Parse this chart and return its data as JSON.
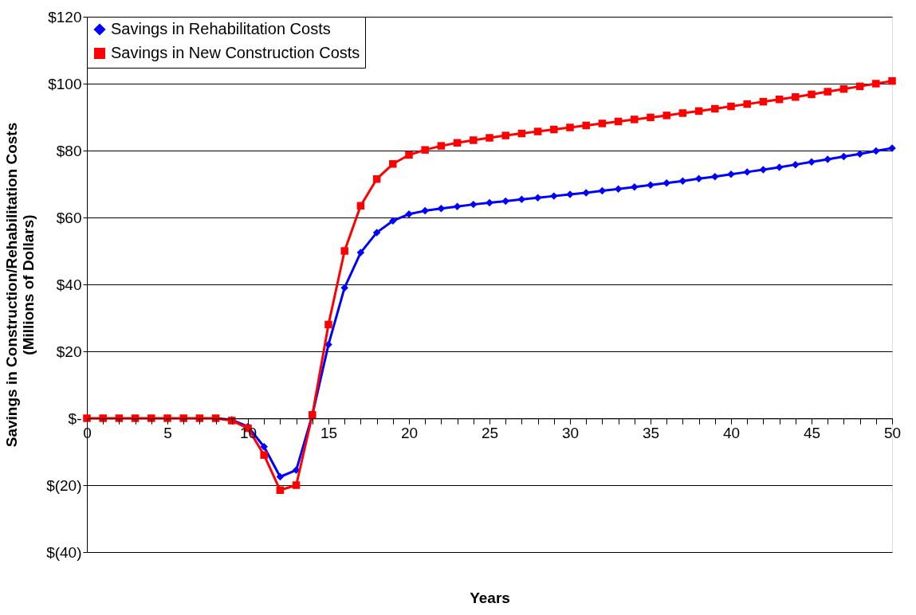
{
  "chart_data": {
    "type": "line",
    "xlabel": "Years",
    "ylabel": "Savings in Construction/Rehabilitation Costs\n(Millions of Dollars)",
    "x": [
      0,
      1,
      2,
      3,
      4,
      5,
      6,
      7,
      8,
      9,
      10,
      11,
      12,
      13,
      14,
      15,
      16,
      17,
      18,
      19,
      20,
      21,
      22,
      23,
      24,
      25,
      26,
      27,
      28,
      29,
      30,
      31,
      32,
      33,
      34,
      35,
      36,
      37,
      38,
      39,
      40,
      41,
      42,
      43,
      44,
      45,
      46,
      47,
      48,
      49,
      50
    ],
    "series": [
      {
        "name": "Savings in Rehabilitation Costs",
        "color": "#0000ff",
        "marker": "diamond",
        "values": [
          null,
          null,
          null,
          null,
          null,
          null,
          null,
          null,
          0,
          -0.5,
          -2.5,
          -8.5,
          -17.5,
          -15.5,
          1,
          22,
          39,
          49.5,
          55.5,
          59,
          61,
          62,
          62.7,
          63.3,
          63.9,
          64.4,
          64.9,
          65.4,
          65.9,
          66.4,
          66.9,
          67.4,
          68.0,
          68.5,
          69.1,
          69.7,
          70.3,
          70.9,
          71.6,
          72.2,
          72.9,
          73.6,
          74.3,
          75.0,
          75.8,
          76.6,
          77.4,
          78.2,
          79.0,
          79.9,
          80.7
        ]
      },
      {
        "name": "Savings in New Construction Costs",
        "color": "#ff0000",
        "marker": "square",
        "values": [
          0,
          0,
          0,
          0,
          0,
          0,
          0,
          0,
          0,
          -0.7,
          -3,
          -11,
          -21.5,
          -20,
          1,
          28,
          50,
          63.5,
          71.5,
          76,
          78.7,
          80.2,
          81.4,
          82.3,
          83.1,
          83.8,
          84.5,
          85.1,
          85.7,
          86.3,
          86.9,
          87.5,
          88.1,
          88.7,
          89.3,
          89.9,
          90.5,
          91.2,
          91.8,
          92.5,
          93.2,
          93.9,
          94.6,
          95.3,
          96.0,
          96.8,
          97.6,
          98.4,
          99.2,
          100.0,
          100.8
        ]
      }
    ],
    "xlim": [
      0,
      50
    ],
    "xticks": [
      0,
      {
        "value": 1,
        "label": null
      },
      {
        "value": 2,
        "label": null
      },
      {
        "value": 3,
        "label": null
      },
      {
        "value": 4,
        "label": null
      },
      5,
      {
        "value": 6,
        "label": null
      },
      {
        "value": 7,
        "label": null
      },
      {
        "value": 8,
        "label": null
      },
      {
        "value": 9,
        "label": null
      },
      10,
      {
        "value": 11,
        "label": null
      },
      {
        "value": 12,
        "label": null
      },
      {
        "value": 13,
        "label": null
      },
      {
        "value": 14,
        "label": null
      },
      15,
      {
        "value": 16,
        "label": null
      },
      {
        "value": 17,
        "label": null
      },
      {
        "value": 18,
        "label": null
      },
      {
        "value": 19,
        "label": null
      },
      20,
      {
        "value": 21,
        "label": null
      },
      {
        "value": 22,
        "label": null
      },
      {
        "value": 23,
        "label": null
      },
      {
        "value": 24,
        "label": null
      },
      25,
      {
        "value": 26,
        "label": null
      },
      {
        "value": 27,
        "label": null
      },
      {
        "value": 28,
        "label": null
      },
      {
        "value": 29,
        "label": null
      },
      30,
      {
        "value": 31,
        "label": null
      },
      {
        "value": 32,
        "label": null
      },
      {
        "value": 33,
        "label": null
      },
      {
        "value": 34,
        "label": null
      },
      35,
      {
        "value": 36,
        "label": null
      },
      {
        "value": 37,
        "label": null
      },
      {
        "value": 38,
        "label": null
      },
      {
        "value": 39,
        "label": null
      },
      40,
      {
        "value": 41,
        "label": null
      },
      {
        "value": 42,
        "label": null
      },
      {
        "value": 43,
        "label": null
      },
      {
        "value": 44,
        "label": null
      },
      45,
      {
        "value": 46,
        "label": null
      },
      {
        "value": 47,
        "label": null
      },
      {
        "value": 48,
        "label": null
      },
      {
        "value": 49,
        "label": null
      },
      50
    ],
    "ylim": [
      -40,
      120
    ],
    "yticks": [
      {
        "value": -40,
        "label": "$(40)"
      },
      {
        "value": -20,
        "label": "$(20)"
      },
      {
        "value": 0,
        "label": "$-"
      },
      {
        "value": 20,
        "label": "$20"
      },
      {
        "value": 40,
        "label": "$40"
      },
      {
        "value": 60,
        "label": "$60"
      },
      {
        "value": 80,
        "label": "$80"
      },
      {
        "value": 100,
        "label": "$100"
      },
      {
        "value": 120,
        "label": "$120"
      }
    ],
    "grid": "y",
    "legend": "top left",
    "line_style": "solid"
  }
}
